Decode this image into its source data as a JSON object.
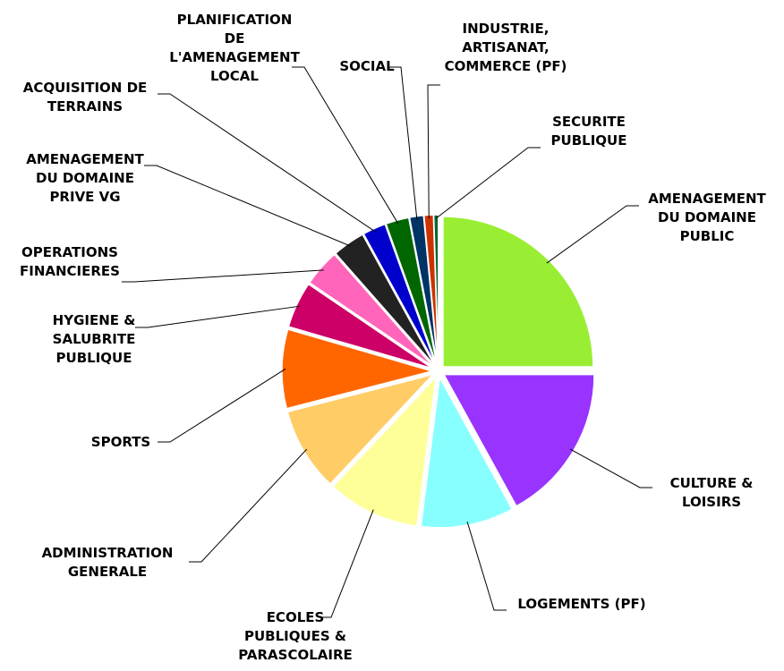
{
  "chart_data": {
    "type": "pie",
    "categories": [
      "AMENAGEMENT DU DOMAINE PUBLIC",
      "CULTURE & LOISIRS",
      "LOGEMENTS (PF)",
      "ECOLES PUBLIQUES & PARASCOLAIRE",
      "ADMINISTRATION GENERALE",
      "SPORTS",
      "HYGIENE & SALUBRITE PUBLIQUE",
      "OPERATIONS FINANCIERES",
      "AMENAGEMENT DU DOMAINE PRIVE VG",
      "ACQUISITION DE TERRAINS",
      "PLANIFICATION DE L'AMENAGEMENT LOCAL",
      "SOCIAL",
      "INDUSTRIE, ARTISANAT, COMMERCE (PF)",
      "SECURITE PUBLIQUE"
    ],
    "values": [
      25,
      17,
      10,
      10,
      9,
      8.5,
      5,
      4,
      3.5,
      2.5,
      2.5,
      1.5,
      1,
      0.5
    ],
    "colors": [
      "#99ee33",
      "#9933ff",
      "#88ffff",
      "#ffff99",
      "#ffcc66",
      "#ff6600",
      "#cc0066",
      "#ff66bb",
      "#222222",
      "#0000cc",
      "#006600",
      "#003366",
      "#cc3300",
      "#006633"
    ]
  }
}
